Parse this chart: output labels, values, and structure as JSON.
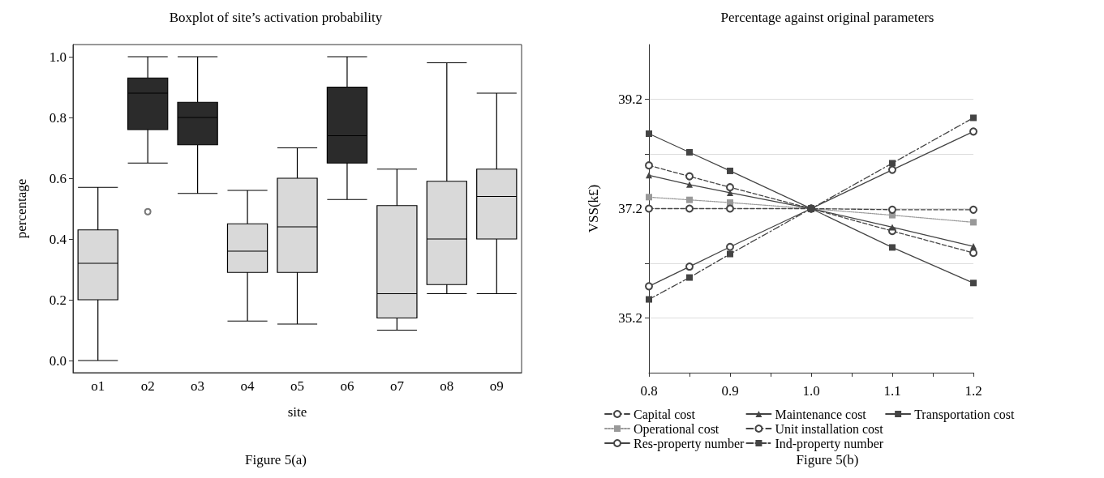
{
  "chart_data": [
    {
      "type": "box",
      "title": "Boxplot of site’s activation probability",
      "xlabel": "site",
      "ylabel": "percentage",
      "annotations": [
        "Figure 5(a)"
      ],
      "categories": [
        "o1",
        "o2",
        "o3",
        "o4",
        "o5",
        "o6",
        "o7",
        "o8",
        "o9"
      ],
      "colors": [
        "#d9d9d9",
        "#2b2b2b",
        "#2b2b2b",
        "#d9d9d9",
        "#d9d9d9",
        "#2b2b2b",
        "#d9d9d9",
        "#d9d9d9",
        "#d9d9d9"
      ],
      "boxes": [
        {
          "low": 0.0,
          "q1": 0.2,
          "median": 0.32,
          "q3": 0.43,
          "high": 0.57
        },
        {
          "low": 0.65,
          "q1": 0.76,
          "median": 0.88,
          "q3": 0.93,
          "high": 1.0,
          "outliers": [
            0.49
          ]
        },
        {
          "low": 0.55,
          "q1": 0.71,
          "median": 0.8,
          "q3": 0.85,
          "high": 1.0
        },
        {
          "low": 0.13,
          "q1": 0.29,
          "median": 0.36,
          "q3": 0.45,
          "high": 0.56
        },
        {
          "low": 0.12,
          "q1": 0.29,
          "median": 0.44,
          "q3": 0.6,
          "high": 0.7
        },
        {
          "low": 0.53,
          "q1": 0.65,
          "median": 0.74,
          "q3": 0.9,
          "high": 1.0
        },
        {
          "low": 0.1,
          "q1": 0.14,
          "median": 0.22,
          "q3": 0.51,
          "high": 0.63
        },
        {
          "low": 0.22,
          "q1": 0.25,
          "median": 0.4,
          "q3": 0.59,
          "high": 0.98
        },
        {
          "low": 0.22,
          "q1": 0.4,
          "median": 0.54,
          "q3": 0.63,
          "high": 0.88
        }
      ],
      "ylim": [
        -0.04,
        1.04
      ],
      "yticks": [
        {
          "value": 0,
          "label": "0.0"
        },
        0.2,
        0.4,
        0.6,
        0.8,
        {
          "value": 1,
          "label": "1.0"
        }
      ],
      "grid": false
    },
    {
      "type": "line",
      "title": "Percentage against original parameters",
      "ylabel": "VSS(k£)",
      "annotations": [
        "Figure 5(b)"
      ],
      "x": [
        0.8,
        0.85,
        0.9,
        1.0,
        1.1,
        1.2
      ],
      "series": [
        {
          "name": "Capital cost",
          "color": "#444444",
          "line_style": "dashed",
          "marker": "circle",
          "values": [
            37.99,
            37.79,
            37.59,
            37.2,
            36.79,
            36.39
          ]
        },
        {
          "name": "Operational cost",
          "color": "#999999",
          "line_style": "dotted",
          "marker": "square",
          "values": [
            37.41,
            37.36,
            37.31,
            37.2,
            37.08,
            36.95
          ]
        },
        {
          "name": "Res-property number",
          "color": "#444444",
          "line_style": "solid",
          "marker": "circle",
          "values": [
            35.78,
            36.14,
            36.5,
            37.2,
            37.91,
            38.61
          ]
        },
        {
          "name": "Maintenance cost",
          "color": "#444444",
          "line_style": "solid",
          "marker": "triangle",
          "values": [
            37.81,
            37.64,
            37.49,
            37.2,
            36.86,
            36.51
          ]
        },
        {
          "name": "Unit installation cost",
          "color": "#444444",
          "line_style": "dashed",
          "marker": "circle",
          "values": [
            37.2,
            37.2,
            37.2,
            37.2,
            37.18,
            37.18
          ]
        },
        {
          "name": "Ind-property number",
          "color": "#444444",
          "line_style": "dashdot",
          "marker": "square",
          "values": [
            35.54,
            35.94,
            36.37,
            37.2,
            38.03,
            38.86
          ]
        },
        {
          "name": "Transportation cost",
          "color": "#444444",
          "line_style": "solid",
          "marker": "square",
          "values": [
            38.57,
            38.23,
            37.89,
            37.2,
            36.49,
            35.84
          ]
        }
      ],
      "xlim": [
        0.8,
        1.2
      ],
      "xticks": [
        0.8,
        {
          "value": 0.85,
          "label": null
        },
        0.9,
        {
          "value": 0.95,
          "label": null
        },
        {
          "value": 1,
          "label": "1.0"
        },
        {
          "value": 1.05,
          "label": null
        },
        1.1,
        {
          "value": 1.15,
          "label": null
        },
        1.2
      ],
      "ylim": [
        34.2,
        40.2
      ],
      "yticks": [
        35.2,
        {
          "value": 36.2,
          "label": null
        },
        37.2,
        {
          "value": 38.2,
          "label": null
        },
        39.2
      ],
      "grid": "y",
      "legend": "bottom"
    }
  ]
}
